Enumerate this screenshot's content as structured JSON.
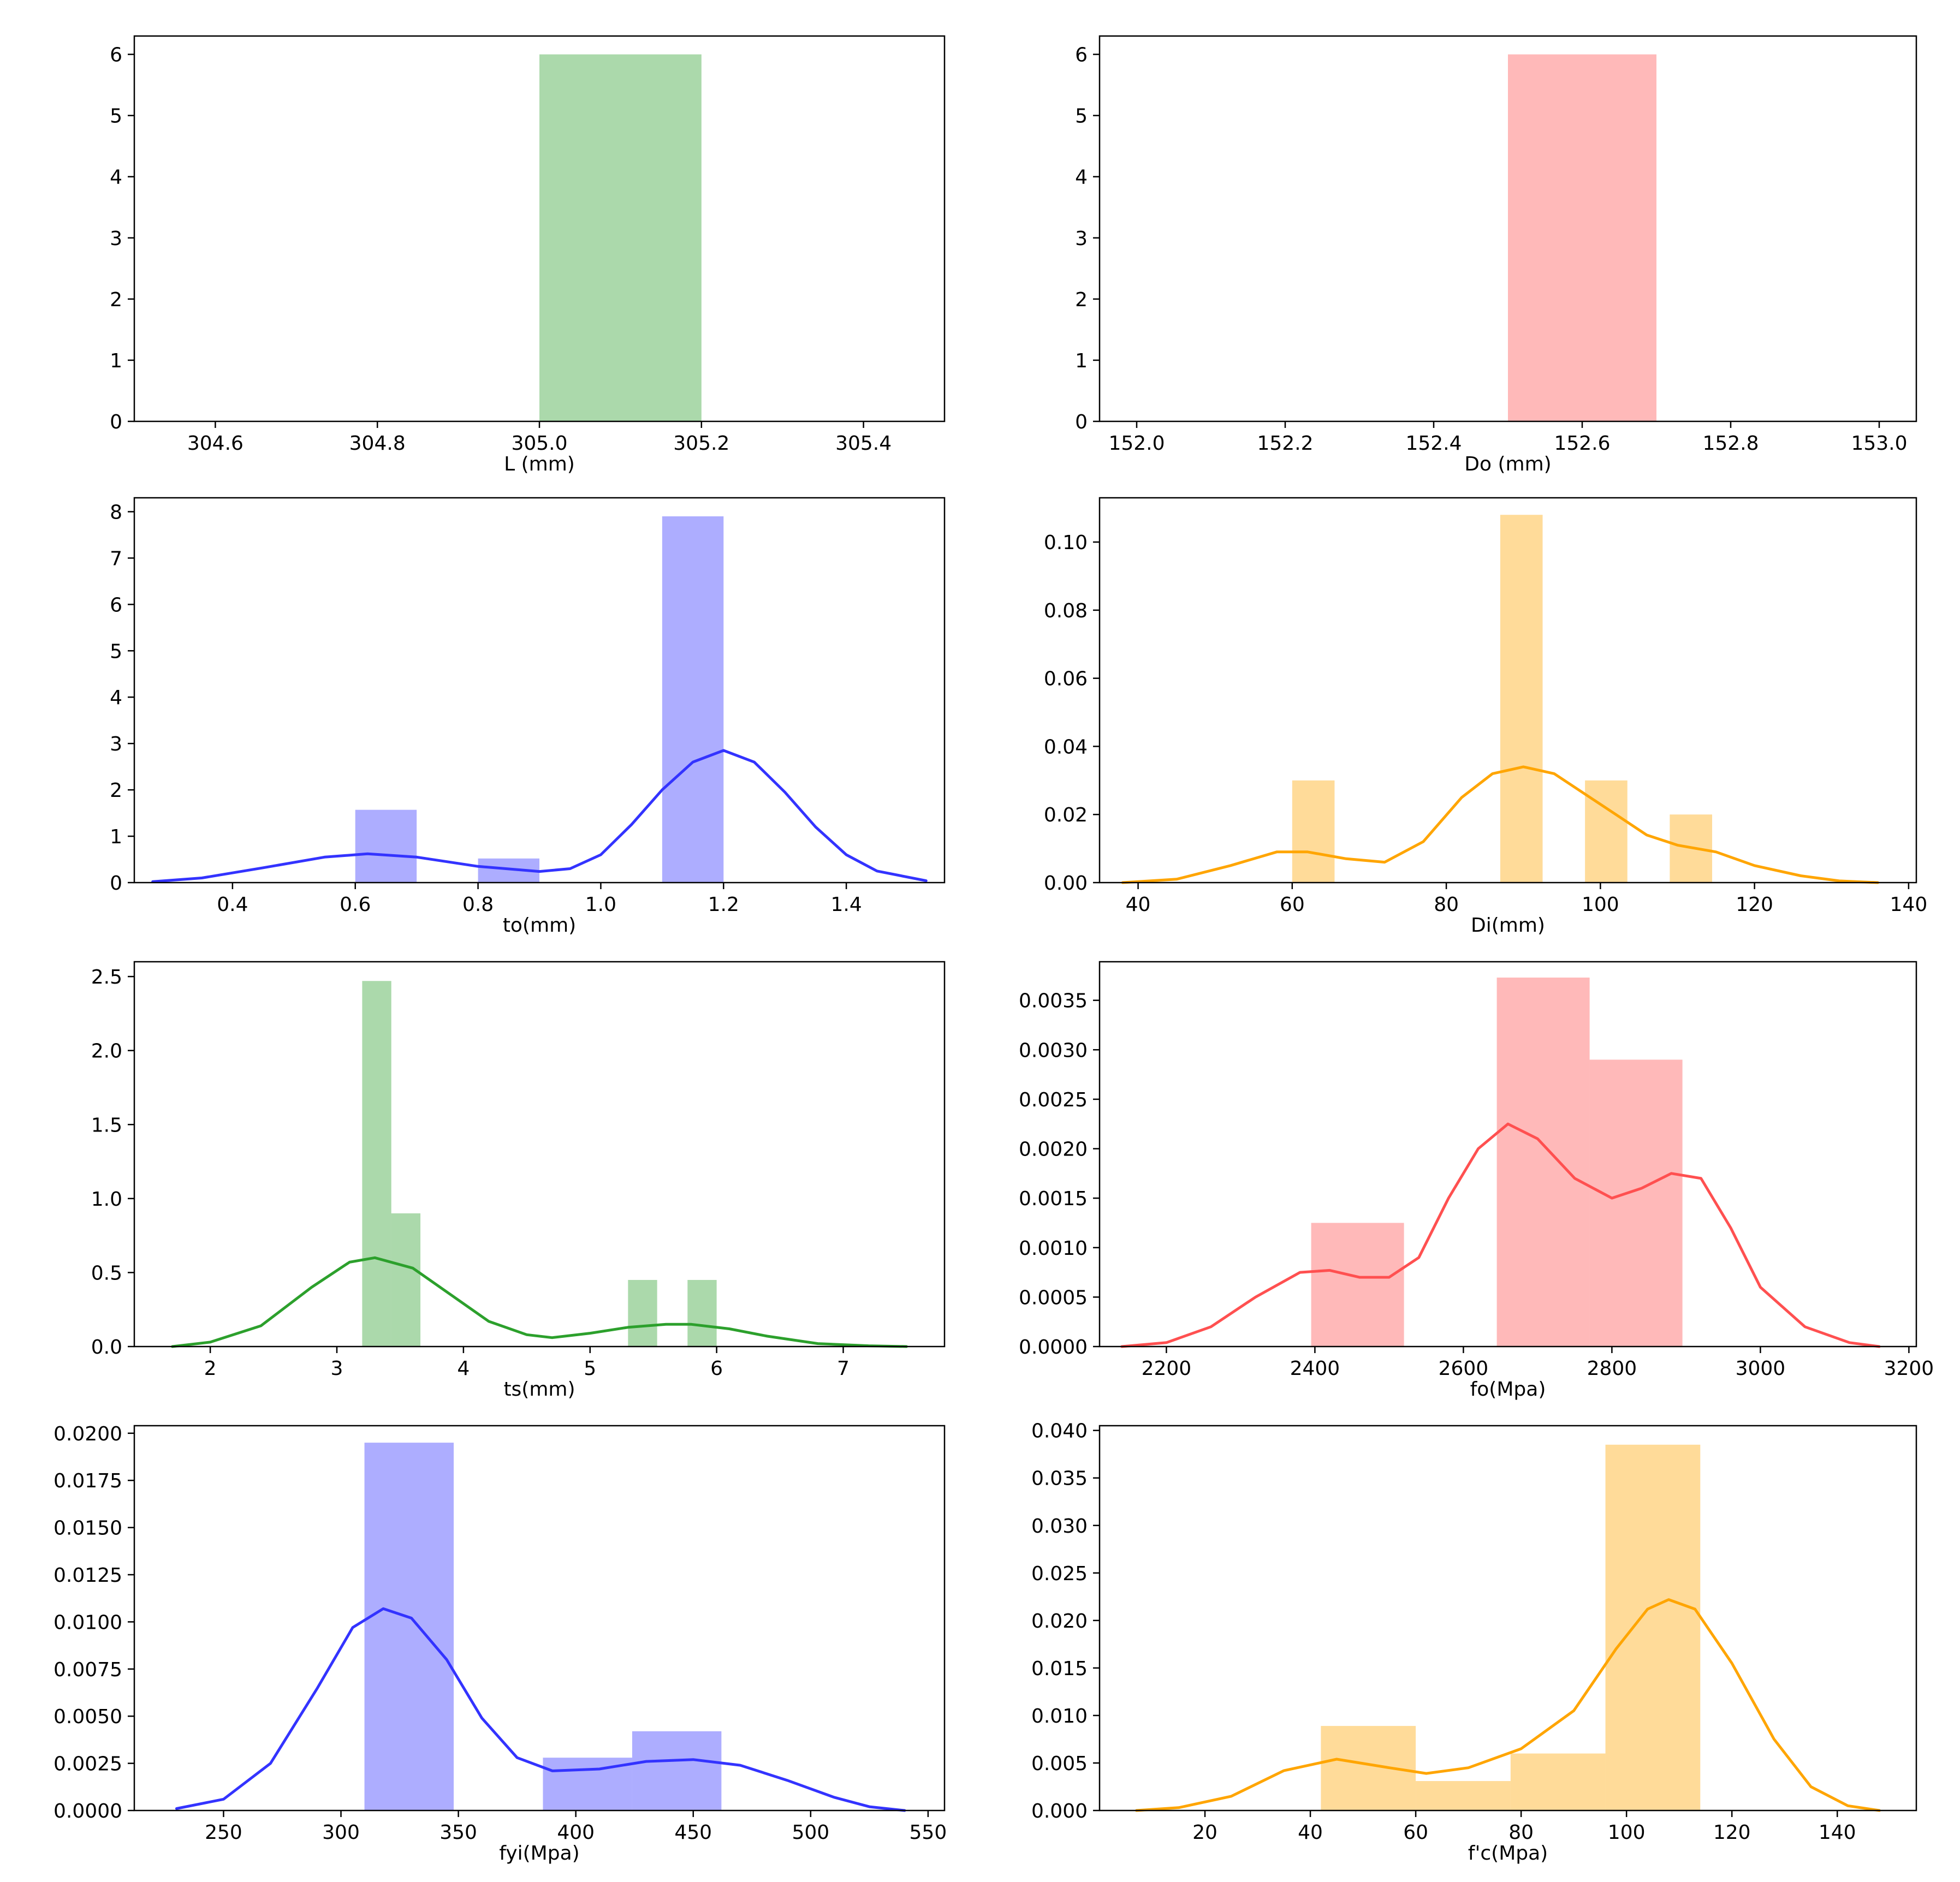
{
  "chart_data": [
    {
      "type": "bar",
      "panel": "top-left",
      "xlabel": "L (mm)",
      "ylabel": "",
      "color": "#2ca02c",
      "kde": false,
      "xlim": [
        304.5,
        305.5
      ],
      "ylim": [
        0,
        6.3
      ],
      "xticks": [
        "304.6",
        "304.8",
        "305.0",
        "305.2",
        "305.4"
      ],
      "yticks": [
        "0",
        "1",
        "2",
        "3",
        "4",
        "5",
        "6"
      ],
      "bins": [
        {
          "x0": 305.0,
          "x1": 305.2,
          "value": 6
        }
      ],
      "kde_points": []
    },
    {
      "type": "bar",
      "panel": "top-right",
      "xlabel": "Do (mm)",
      "ylabel": "",
      "color": "#ff5050",
      "kde": false,
      "xlim": [
        151.95,
        153.05
      ],
      "ylim": [
        0,
        6.3
      ],
      "xticks": [
        "152.0",
        "152.2",
        "152.4",
        "152.6",
        "152.8",
        "153.0"
      ],
      "yticks": [
        "0",
        "1",
        "2",
        "3",
        "4",
        "5",
        "6"
      ],
      "bins": [
        {
          "x0": 152.5,
          "x1": 152.7,
          "value": 6
        }
      ],
      "kde_points": []
    },
    {
      "type": "bar",
      "panel": "row2-left",
      "xlabel": "to(mm)",
      "ylabel": "",
      "color": "#3333ff",
      "kde": true,
      "xlim": [
        0.24,
        1.56
      ],
      "ylim": [
        0,
        8.3
      ],
      "xticks": [
        "0.4",
        "0.6",
        "0.8",
        "1.0",
        "1.2",
        "1.4"
      ],
      "yticks": [
        "0",
        "1",
        "2",
        "3",
        "4",
        "5",
        "6",
        "7",
        "8"
      ],
      "bins": [
        {
          "x0": 0.6,
          "x1": 0.7,
          "value": 1.57
        },
        {
          "x0": 0.8,
          "x1": 0.9,
          "value": 0.52
        },
        {
          "x0": 1.1,
          "x1": 1.2,
          "value": 7.9
        }
      ],
      "kde_points": [
        [
          0.27,
          0.02
        ],
        [
          0.35,
          0.1
        ],
        [
          0.45,
          0.32
        ],
        [
          0.55,
          0.55
        ],
        [
          0.62,
          0.62
        ],
        [
          0.7,
          0.55
        ],
        [
          0.8,
          0.35
        ],
        [
          0.9,
          0.24
        ],
        [
          0.95,
          0.3
        ],
        [
          1.0,
          0.6
        ],
        [
          1.05,
          1.25
        ],
        [
          1.1,
          2.0
        ],
        [
          1.15,
          2.6
        ],
        [
          1.2,
          2.85
        ],
        [
          1.25,
          2.6
        ],
        [
          1.3,
          1.95
        ],
        [
          1.35,
          1.2
        ],
        [
          1.4,
          0.6
        ],
        [
          1.45,
          0.25
        ],
        [
          1.53,
          0.04
        ]
      ]
    },
    {
      "type": "bar",
      "panel": "row2-right",
      "xlabel": "Di(mm)",
      "ylabel": "",
      "color": "#ffa500",
      "kde": true,
      "xlim": [
        35,
        141
      ],
      "ylim": [
        0,
        0.113
      ],
      "xticks": [
        "40",
        "60",
        "80",
        "100",
        "120",
        "140"
      ],
      "yticks": [
        "0.00",
        "0.02",
        "0.04",
        "0.06",
        "0.08",
        "0.10"
      ],
      "bins": [
        {
          "x0": 60,
          "x1": 65.5,
          "value": 0.03
        },
        {
          "x0": 87,
          "x1": 92.5,
          "value": 0.108
        },
        {
          "x0": 98,
          "x1": 103.5,
          "value": 0.03
        },
        {
          "x0": 109,
          "x1": 114.5,
          "value": 0.02
        }
      ],
      "kde_points": [
        [
          38,
          0.0
        ],
        [
          45,
          0.001
        ],
        [
          52,
          0.005
        ],
        [
          58,
          0.009
        ],
        [
          62,
          0.009
        ],
        [
          67,
          0.007
        ],
        [
          72,
          0.006
        ],
        [
          77,
          0.012
        ],
        [
          82,
          0.025
        ],
        [
          86,
          0.032
        ],
        [
          90,
          0.034
        ],
        [
          94,
          0.032
        ],
        [
          98,
          0.026
        ],
        [
          102,
          0.02
        ],
        [
          106,
          0.014
        ],
        [
          110,
          0.011
        ],
        [
          115,
          0.009
        ],
        [
          120,
          0.005
        ],
        [
          126,
          0.002
        ],
        [
          131,
          0.0005
        ],
        [
          136,
          0.0
        ]
      ]
    },
    {
      "type": "bar",
      "panel": "row3-left",
      "xlabel": "ts(mm)",
      "ylabel": "",
      "color": "#2ca02c",
      "kde": true,
      "xlim": [
        1.4,
        7.8
      ],
      "ylim": [
        0,
        2.6
      ],
      "xticks": [
        "2",
        "3",
        "4",
        "5",
        "6",
        "7"
      ],
      "yticks": [
        "0.0",
        "0.5",
        "1.0",
        "1.5",
        "2.0",
        "2.5"
      ],
      "bins": [
        {
          "x0": 3.2,
          "x1": 3.43,
          "value": 2.47
        },
        {
          "x0": 3.43,
          "x1": 3.66,
          "value": 0.9
        },
        {
          "x0": 5.3,
          "x1": 5.53,
          "value": 0.45
        },
        {
          "x0": 5.77,
          "x1": 6.0,
          "value": 0.45
        }
      ],
      "kde_points": [
        [
          1.7,
          0.0
        ],
        [
          2.0,
          0.03
        ],
        [
          2.4,
          0.14
        ],
        [
          2.8,
          0.4
        ],
        [
          3.1,
          0.57
        ],
        [
          3.3,
          0.6
        ],
        [
          3.6,
          0.53
        ],
        [
          3.9,
          0.35
        ],
        [
          4.2,
          0.17
        ],
        [
          4.5,
          0.08
        ],
        [
          4.7,
          0.06
        ],
        [
          5.0,
          0.09
        ],
        [
          5.3,
          0.13
        ],
        [
          5.6,
          0.15
        ],
        [
          5.8,
          0.15
        ],
        [
          6.1,
          0.12
        ],
        [
          6.4,
          0.07
        ],
        [
          6.8,
          0.02
        ],
        [
          7.2,
          0.005
        ],
        [
          7.5,
          0.0
        ]
      ]
    },
    {
      "type": "bar",
      "panel": "row3-right",
      "xlabel": "fo(Mpa)",
      "ylabel": "",
      "color": "#ff5050",
      "kde": true,
      "xlim": [
        2110,
        3210
      ],
      "ylim": [
        0,
        0.00389
      ],
      "xticks": [
        "2200",
        "2400",
        "2600",
        "2800",
        "3000",
        "3200"
      ],
      "yticks": [
        "0.0000",
        "0.0005",
        "0.0010",
        "0.0015",
        "0.0020",
        "0.0025",
        "0.0030",
        "0.0035"
      ],
      "bins": [
        {
          "x0": 2395,
          "x1": 2520,
          "value": 0.00125
        },
        {
          "x0": 2645,
          "x1": 2770,
          "value": 0.00373
        },
        {
          "x0": 2770,
          "x1": 2895,
          "value": 0.0029
        }
      ],
      "kde_points": [
        [
          2140,
          0.0
        ],
        [
          2200,
          4e-05
        ],
        [
          2260,
          0.0002
        ],
        [
          2320,
          0.0005
        ],
        [
          2380,
          0.00075
        ],
        [
          2420,
          0.00077
        ],
        [
          2460,
          0.0007
        ],
        [
          2500,
          0.0007
        ],
        [
          2540,
          0.0009
        ],
        [
          2580,
          0.0015
        ],
        [
          2620,
          0.002
        ],
        [
          2660,
          0.00225
        ],
        [
          2700,
          0.0021
        ],
        [
          2750,
          0.0017
        ],
        [
          2800,
          0.0015
        ],
        [
          2840,
          0.0016
        ],
        [
          2880,
          0.00175
        ],
        [
          2920,
          0.0017
        ],
        [
          2960,
          0.0012
        ],
        [
          3000,
          0.0006
        ],
        [
          3060,
          0.0002
        ],
        [
          3120,
          4e-05
        ],
        [
          3160,
          0.0
        ]
      ]
    },
    {
      "type": "bar",
      "panel": "bottom-left",
      "xlabel": "fyi(Mpa)",
      "ylabel": "",
      "color": "#3333ff",
      "kde": true,
      "xlim": [
        212,
        557
      ],
      "ylim": [
        0,
        0.0204
      ],
      "xticks": [
        "250",
        "300",
        "350",
        "400",
        "450",
        "500",
        "550"
      ],
      "yticks": [
        "0.0000",
        "0.0025",
        "0.0050",
        "0.0075",
        "0.0100",
        "0.0125",
        "0.0150",
        "0.0175",
        "0.0200"
      ],
      "bins": [
        {
          "x0": 310,
          "x1": 348,
          "value": 0.0195
        },
        {
          "x0": 386,
          "x1": 424,
          "value": 0.0028
        },
        {
          "x0": 424,
          "x1": 462,
          "value": 0.0042
        }
      ],
      "kde_points": [
        [
          230,
          0.0001
        ],
        [
          250,
          0.0006
        ],
        [
          270,
          0.0025
        ],
        [
          290,
          0.0065
        ],
        [
          305,
          0.0097
        ],
        [
          318,
          0.0107
        ],
        [
          330,
          0.0102
        ],
        [
          345,
          0.008
        ],
        [
          360,
          0.0049
        ],
        [
          375,
          0.0028
        ],
        [
          390,
          0.0021
        ],
        [
          410,
          0.0022
        ],
        [
          430,
          0.0026
        ],
        [
          450,
          0.0027
        ],
        [
          470,
          0.0024
        ],
        [
          490,
          0.0016
        ],
        [
          510,
          0.0007
        ],
        [
          525,
          0.0002
        ],
        [
          540,
          0.0
        ]
      ]
    },
    {
      "type": "bar",
      "panel": "bottom-right",
      "xlabel": "f'c(Mpa)",
      "ylabel": "",
      "color": "#ffa500",
      "kde": true,
      "xlim": [
        0,
        155
      ],
      "ylim": [
        0,
        0.0405
      ],
      "xticks": [
        "20",
        "40",
        "60",
        "80",
        "100",
        "120",
        "140"
      ],
      "yticks": [
        "0.000",
        "0.005",
        "0.010",
        "0.015",
        "0.020",
        "0.025",
        "0.030",
        "0.035",
        "0.040"
      ],
      "bins": [
        {
          "x0": 42,
          "x1": 60,
          "value": 0.0089
        },
        {
          "x0": 60,
          "x1": 78,
          "value": 0.0031
        },
        {
          "x0": 78,
          "x1": 96,
          "value": 0.006
        },
        {
          "x0": 96,
          "x1": 114,
          "value": 0.0385
        }
      ],
      "kde_points": [
        [
          7,
          0.0
        ],
        [
          15,
          0.0003
        ],
        [
          25,
          0.0015
        ],
        [
          35,
          0.0042
        ],
        [
          45,
          0.0054
        ],
        [
          55,
          0.0045
        ],
        [
          62,
          0.0039
        ],
        [
          70,
          0.0045
        ],
        [
          80,
          0.0065
        ],
        [
          90,
          0.0105
        ],
        [
          98,
          0.017
        ],
        [
          104,
          0.0212
        ],
        [
          108,
          0.0222
        ],
        [
          113,
          0.0212
        ],
        [
          120,
          0.0155
        ],
        [
          128,
          0.0075
        ],
        [
          135,
          0.0025
        ],
        [
          142,
          0.0005
        ],
        [
          148,
          0.0
        ]
      ]
    }
  ]
}
